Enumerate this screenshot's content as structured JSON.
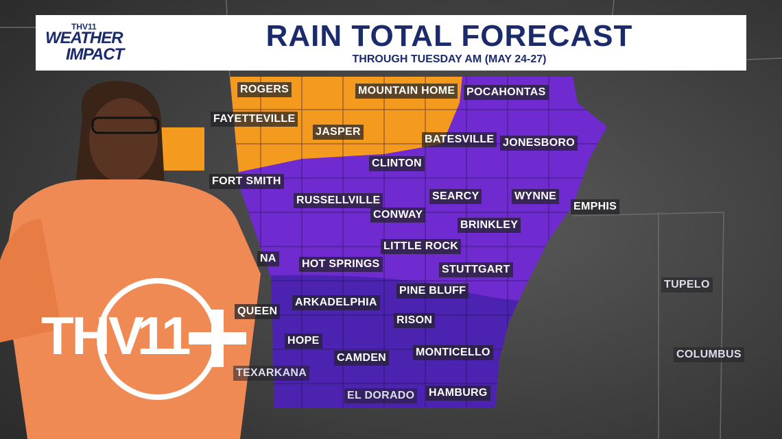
{
  "header": {
    "logo": {
      "station": "THV11",
      "line1": "WEATHER",
      "line2": "IMPACT"
    },
    "title": "RAIN TOTAL FORECAST",
    "subtitle": "THROUGH TUESDAY AM (MAY 24-27)"
  },
  "map": {
    "cities": [
      "ROGERS",
      "MOUNTAIN HOME",
      "POCAHONTAS",
      "FAYETTEVILLE",
      "JASPER",
      "BATESVILLE",
      "JONESBORO",
      "CLINTON",
      "FORT SMITH",
      "RUSSELLVILLE",
      "SEARCY",
      "WYNNE",
      "EMPHIS",
      "CONWAY",
      "BRINKLEY",
      "LITTLE ROCK",
      "NA",
      "HOT SPRINGS",
      "STUTTGART",
      "PINE BLUFF",
      "TUPELO",
      "ARKADELPHIA",
      "QUEEN",
      "RISON",
      "HOPE",
      "CAMDEN",
      "MONTICELLO",
      "COLUMBUS",
      "TEXARKANA",
      "EL DORADO",
      "HAMBURG"
    ]
  },
  "bug": {
    "letters": "THV",
    "number": "11"
  }
}
